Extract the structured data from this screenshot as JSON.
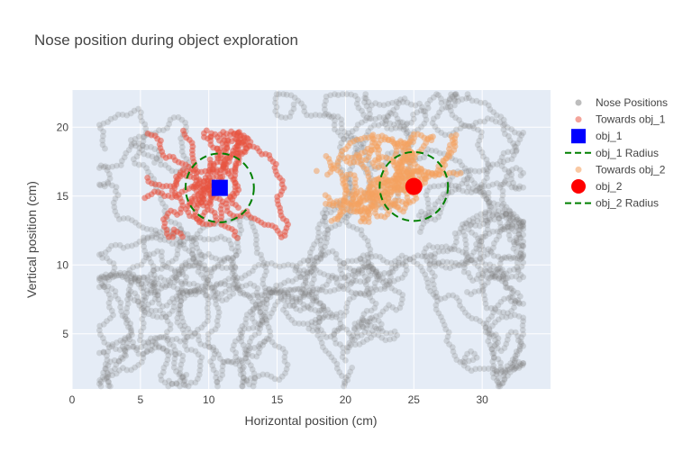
{
  "chart_data": {
    "type": "scatter",
    "title": "Nose position during object exploration",
    "xlabel": "Horizontal position (cm)",
    "ylabel": "Vertical position (cm)",
    "xlim": [
      0,
      35
    ],
    "ylim": [
      1,
      22.7
    ],
    "x_ticks": [
      0,
      5,
      10,
      15,
      20,
      25,
      30
    ],
    "y_ticks": [
      5,
      10,
      15,
      20
    ],
    "grid": true,
    "legend_position": "right",
    "objects": [
      {
        "name": "obj_1",
        "x": 10.8,
        "y": 15.6,
        "radius": 2.5,
        "marker": "square",
        "color": "#0000ff"
      },
      {
        "name": "obj_2",
        "x": 25.0,
        "y": 15.7,
        "radius": 2.5,
        "marker": "circle",
        "color": "#ff0000"
      }
    ],
    "series": [
      {
        "name": "Nose Positions",
        "color": "#808080",
        "opacity": 0.25,
        "note": "dense trajectory, ~x 2–33, y 1–22.5"
      },
      {
        "name": "Towards obj_1",
        "color": "#e8533f",
        "opacity": 0.55,
        "note": "cluster around obj_1, x 6–17, y 8–19"
      },
      {
        "name": "Towards obj_2",
        "color": "#f4a261",
        "opacity": 0.55,
        "note": "cluster around obj_2, x 19–29, y 11.5–19.5"
      }
    ],
    "legend": [
      {
        "label": "Nose Positions",
        "kind": "dot",
        "color": "#bdbdbd"
      },
      {
        "label": "Towards obj_1",
        "kind": "dot",
        "color": "#f4a49a"
      },
      {
        "label": "obj_1",
        "kind": "square",
        "color": "#0000ff"
      },
      {
        "label": "obj_1 Radius",
        "kind": "dash",
        "color": "#008000"
      },
      {
        "label": "Towards obj_2",
        "kind": "dot",
        "color": "#f9c9a3"
      },
      {
        "label": "obj_2",
        "kind": "circle",
        "color": "#ff0000"
      },
      {
        "label": "obj_2 Radius",
        "kind": "dash",
        "color": "#008000"
      }
    ],
    "colors": {
      "plot_bg": "#e5ecf6",
      "grid": "#ffffff",
      "radius_line": "#008000"
    }
  }
}
